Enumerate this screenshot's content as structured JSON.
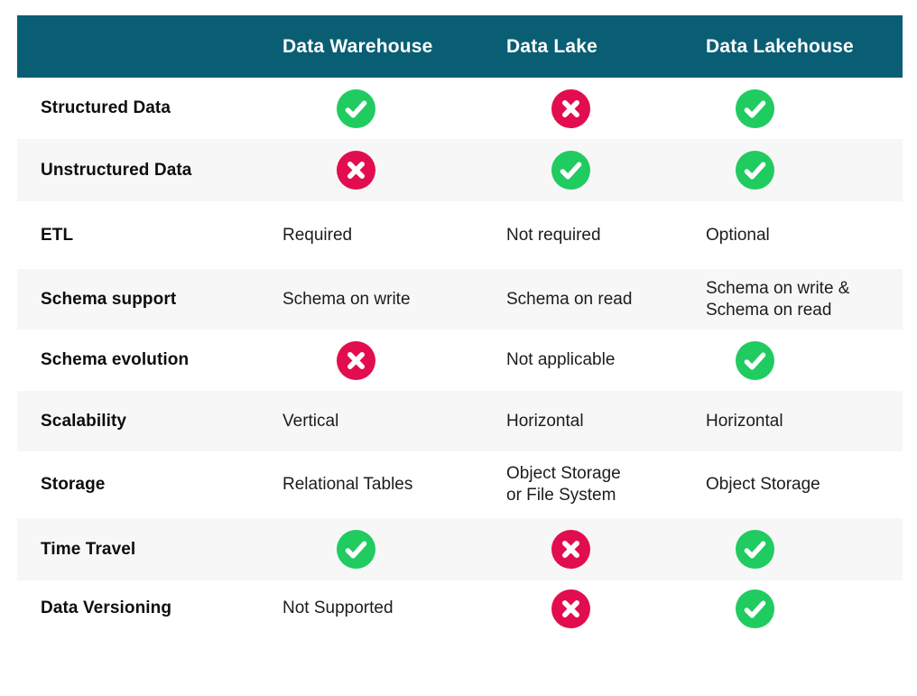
{
  "colors": {
    "header_bg": "#095E74",
    "header_text": "#FFFFFF",
    "row_bg": "#FFFFFF",
    "row_alt_bg": "#F7F7F7",
    "label_text": "#0D0D0D",
    "value_text": "#1C1C1C",
    "check_green": "#20CB60",
    "cross_red": "#E20D4E",
    "icon_mark": "#FFFFFF"
  },
  "icons": {
    "check": "check-icon: green circle with white checkmark (supported)",
    "cross": "cross-icon: crimson circle with white x (not supported)"
  },
  "table": {
    "columns": [
      "Data Warehouse",
      "Data Lake",
      "Data Lakehouse"
    ],
    "rows": [
      {
        "label": "Structured Data",
        "cells": [
          {
            "type": "check"
          },
          {
            "type": "cross"
          },
          {
            "type": "check"
          }
        ]
      },
      {
        "label": "Unstructured Data",
        "cells": [
          {
            "type": "cross"
          },
          {
            "type": "check"
          },
          {
            "type": "check"
          }
        ]
      },
      {
        "label": "ETL",
        "cells": [
          {
            "type": "text",
            "value": "Required"
          },
          {
            "type": "text",
            "value": "Not required"
          },
          {
            "type": "text",
            "value": "Optional"
          }
        ]
      },
      {
        "label": "Schema support",
        "cells": [
          {
            "type": "text",
            "value": "Schema on write"
          },
          {
            "type": "text",
            "value": "Schema on read"
          },
          {
            "type": "text",
            "value": "Schema on write &\nSchema on read"
          }
        ]
      },
      {
        "label": "Schema evolution",
        "cells": [
          {
            "type": "cross"
          },
          {
            "type": "text",
            "value": "Not applicable"
          },
          {
            "type": "check"
          }
        ]
      },
      {
        "label": "Scalability",
        "cells": [
          {
            "type": "text",
            "value": "Vertical"
          },
          {
            "type": "text",
            "value": "Horizontal"
          },
          {
            "type": "text",
            "value": "Horizontal"
          }
        ]
      },
      {
        "label": "Storage",
        "cells": [
          {
            "type": "text",
            "value": "Relational Tables"
          },
          {
            "type": "text",
            "value": "Object Storage\nor File System"
          },
          {
            "type": "text",
            "value": "Object Storage"
          }
        ]
      },
      {
        "label": "Time Travel",
        "cells": [
          {
            "type": "check"
          },
          {
            "type": "cross"
          },
          {
            "type": "check"
          }
        ]
      },
      {
        "label": "Data Versioning",
        "cells": [
          {
            "type": "text",
            "value": "Not Supported"
          },
          {
            "type": "cross"
          },
          {
            "type": "check"
          }
        ]
      }
    ]
  },
  "chart_data": {
    "type": "table",
    "columns": [
      "",
      "Data Warehouse",
      "Data Lake",
      "Data Lakehouse"
    ],
    "rows": [
      [
        "Structured Data",
        "yes",
        "no",
        "yes"
      ],
      [
        "Unstructured Data",
        "no",
        "yes",
        "yes"
      ],
      [
        "ETL",
        "Required",
        "Not required",
        "Optional"
      ],
      [
        "Schema support",
        "Schema on write",
        "Schema on read",
        "Schema on write & Schema on read"
      ],
      [
        "Schema evolution",
        "no",
        "Not applicable",
        "yes"
      ],
      [
        "Scalability",
        "Vertical",
        "Horizontal",
        "Horizontal"
      ],
      [
        "Storage",
        "Relational Tables",
        "Object Storage or File System",
        "Object Storage"
      ],
      [
        "Time Travel",
        "yes",
        "no",
        "yes"
      ],
      [
        "Data Versioning",
        "Not Supported",
        "no",
        "yes"
      ]
    ],
    "legend": "green check circle = supported, crimson x circle = not supported"
  }
}
